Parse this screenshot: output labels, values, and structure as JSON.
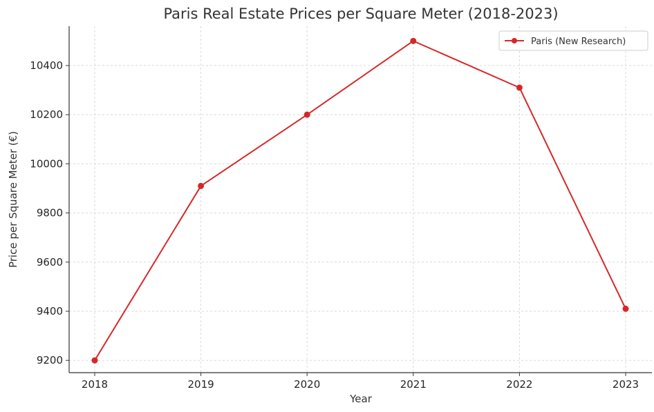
{
  "chart_data": {
    "type": "line",
    "title": "Paris Real Estate Prices per Square Meter (2018-2023)",
    "xlabel": "Year",
    "ylabel": "Price per Square Meter (€)",
    "categories": [
      "2018",
      "2019",
      "2020",
      "2021",
      "2022",
      "2023"
    ],
    "y_ticks": [
      "9200",
      "9400",
      "9600",
      "9800",
      "10000",
      "10200",
      "10400"
    ],
    "ylim": [
      9150,
      10560
    ],
    "grid": true,
    "legend_position": "top-right",
    "series": [
      {
        "name": "Paris (New Research)",
        "color": "#d62728",
        "values": [
          9200,
          9910,
          10200,
          10500,
          10310,
          9410
        ]
      }
    ]
  }
}
